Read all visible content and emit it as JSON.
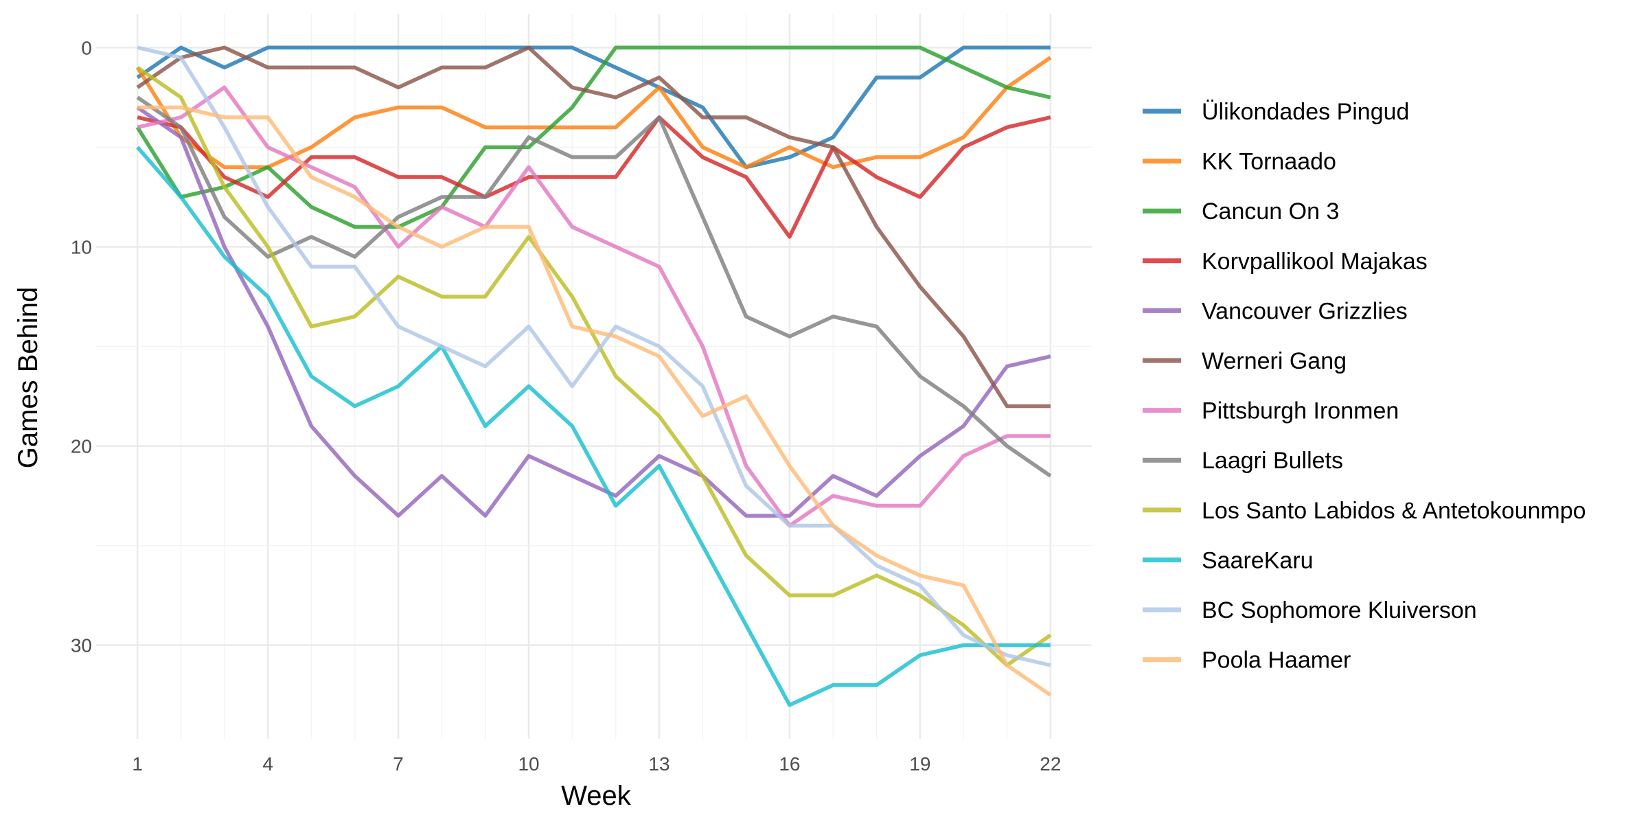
{
  "chart_data": {
    "type": "line",
    "title": "",
    "xlabel": "Week",
    "ylabel": "Games Behind",
    "x": [
      1,
      2,
      3,
      4,
      5,
      6,
      7,
      8,
      9,
      10,
      11,
      12,
      13,
      14,
      15,
      16,
      17,
      18,
      19,
      20,
      21,
      22
    ],
    "x_ticks": [
      1,
      4,
      7,
      10,
      13,
      16,
      19,
      22
    ],
    "y_ticks": [
      0,
      10,
      20,
      30
    ],
    "xlim": [
      0.05,
      22.95
    ],
    "ylim": [
      -1.7,
      34.7
    ],
    "y_reversed": true,
    "grid": true,
    "legend_position": "right",
    "series": [
      {
        "name": "Ülikondades Pingud",
        "color": "#1f77b4",
        "values": [
          1.5,
          0,
          1,
          0,
          0,
          0,
          0,
          0,
          0,
          0,
          0,
          1,
          2,
          3,
          6,
          5.5,
          4.5,
          1.5,
          1.5,
          0,
          0,
          0
        ]
      },
      {
        "name": "KK Tornaado",
        "color": "#ff7f0e",
        "values": [
          1,
          4.5,
          6,
          6,
          5,
          3.5,
          3,
          3,
          4,
          4,
          4,
          4,
          2,
          5,
          6,
          5,
          6,
          5.5,
          5.5,
          4.5,
          2,
          0.5
        ]
      },
      {
        "name": "Cancun On 3",
        "color": "#2ca02c",
        "values": [
          4,
          7.5,
          7,
          6,
          8,
          9,
          9,
          8,
          5,
          5,
          3,
          0,
          0,
          0,
          0,
          0,
          0,
          0,
          0,
          1,
          2,
          2.5
        ]
      },
      {
        "name": "Korvpallikool Majakas",
        "color": "#d62728",
        "values": [
          3.5,
          4,
          6.5,
          7.5,
          5.5,
          5.5,
          6.5,
          6.5,
          7.5,
          6.5,
          6.5,
          6.5,
          3.5,
          5.5,
          6.5,
          9.5,
          5,
          6.5,
          7.5,
          5,
          4,
          3.5
        ]
      },
      {
        "name": "Vancouver Grizzlies",
        "color": "#9467bd",
        "values": [
          3,
          4.5,
          10,
          14,
          19,
          21.5,
          23.5,
          21.5,
          23.5,
          20.5,
          21.5,
          22.5,
          20.5,
          21.5,
          23.5,
          23.5,
          21.5,
          22.5,
          20.5,
          19,
          16,
          15.5
        ]
      },
      {
        "name": "Werneri Gang",
        "color": "#8c564b",
        "values": [
          2,
          0.5,
          0,
          1,
          1,
          1,
          2,
          1,
          1,
          0,
          2,
          2.5,
          1.5,
          3.5,
          3.5,
          4.5,
          5,
          9,
          12,
          14.5,
          18,
          18
        ]
      },
      {
        "name": "Pittsburgh Ironmen",
        "color": "#e377c2",
        "values": [
          4,
          3.5,
          2,
          5,
          6,
          7,
          10,
          8,
          9,
          6,
          9,
          10,
          11,
          15,
          21,
          24,
          22.5,
          23,
          23,
          20.5,
          19.5,
          19.5
        ]
      },
      {
        "name": "Laagri Bullets",
        "color": "#7f7f7f",
        "values": [
          2.5,
          4,
          8.5,
          10.5,
          9.5,
          10.5,
          8.5,
          7.5,
          7.5,
          4.5,
          5.5,
          5.5,
          3.5,
          8.5,
          13.5,
          14.5,
          13.5,
          14,
          16.5,
          18,
          20,
          21.5
        ]
      },
      {
        "name": "Los Santo Labidos & Antetokounmpo",
        "color": "#bcbd22",
        "values": [
          1,
          2.5,
          7,
          10,
          14,
          13.5,
          11.5,
          12.5,
          12.5,
          9.5,
          12.5,
          16.5,
          18.5,
          21.5,
          25.5,
          27.5,
          27.5,
          26.5,
          27.5,
          29,
          31,
          29.5
        ]
      },
      {
        "name": "SaareKaru",
        "color": "#17becf",
        "values": [
          5,
          7.5,
          10.5,
          12.5,
          16.5,
          18,
          17,
          15,
          19,
          17,
          19,
          23,
          21,
          25,
          29,
          33,
          32,
          32,
          30.5,
          30,
          30,
          30
        ]
      },
      {
        "name": "BC Sophomore Kluiverson",
        "color": "#aec7e8",
        "values": [
          0,
          0.5,
          4,
          8,
          11,
          11,
          14,
          15,
          16,
          14,
          17,
          14,
          15,
          17,
          22,
          24,
          24,
          26,
          27,
          29.5,
          30.5,
          31
        ]
      },
      {
        "name": "Poola Haamer",
        "color": "#ffbb78",
        "values": [
          3,
          3,
          3.5,
          3.5,
          6.5,
          7.5,
          9,
          10,
          9,
          9,
          14,
          14.5,
          15.5,
          18.5,
          17.5,
          21,
          24,
          25.5,
          26.5,
          27,
          31,
          32.5
        ]
      }
    ]
  }
}
